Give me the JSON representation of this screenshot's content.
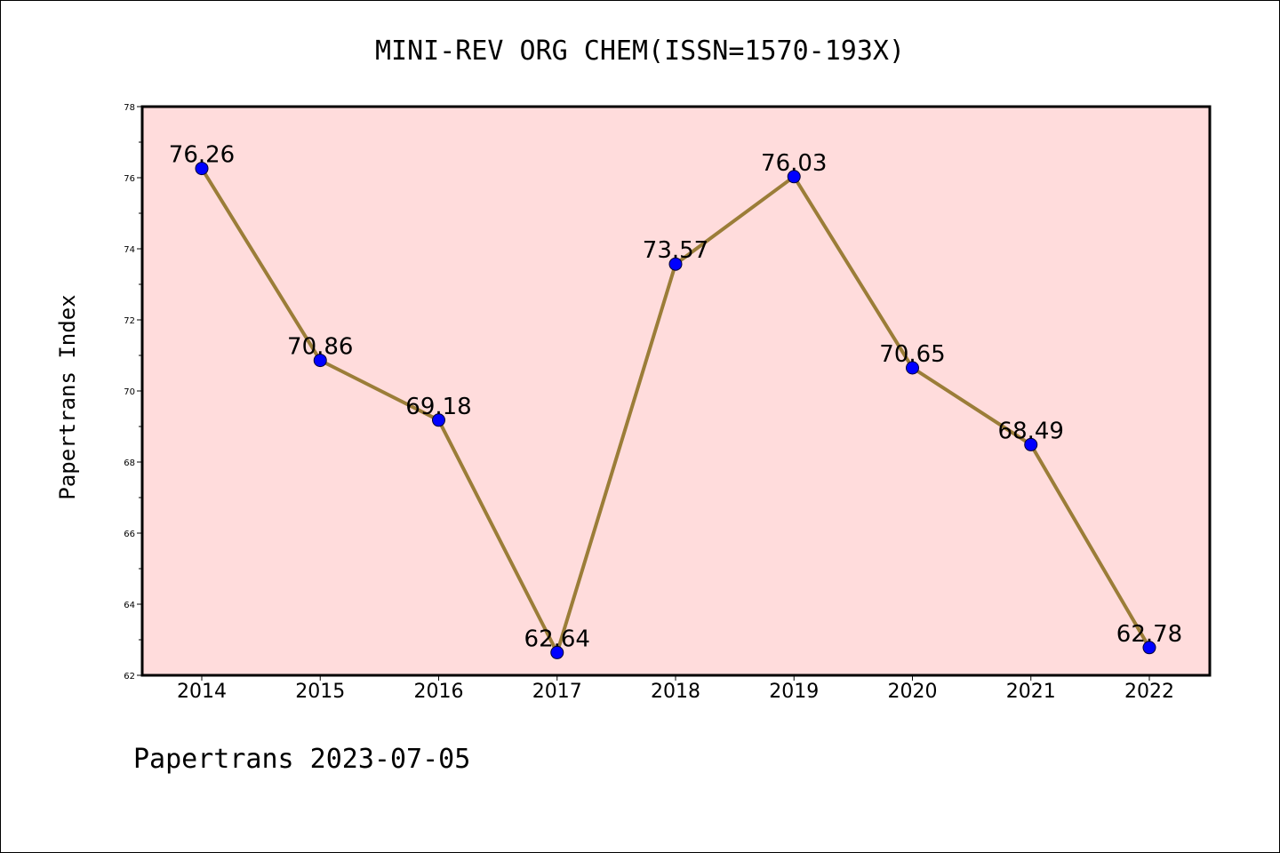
{
  "chart_data": {
    "type": "line",
    "title": "MINI-REV ORG CHEM(ISSN=1570-193X)",
    "ylabel": "Papertrans Index",
    "xlabel": "",
    "footer": "Papertrans 2023-07-05",
    "x": [
      "2014",
      "2015",
      "2016",
      "2017",
      "2018",
      "2019",
      "2020",
      "2021",
      "2022"
    ],
    "series": [
      {
        "values": [
          76.26,
          70.86,
          69.18,
          62.64,
          73.57,
          76.03,
          70.65,
          68.49,
          62.78
        ],
        "labels": [
          "76.26",
          "70.86",
          "69.18",
          "62.64",
          "73.57",
          "76.03",
          "70.65",
          "68.49",
          "62.78"
        ]
      }
    ],
    "ylim": [
      62,
      78
    ],
    "yticks": [
      "62",
      "64",
      "66",
      "68",
      "70",
      "72",
      "74",
      "76",
      "78"
    ],
    "grid": false,
    "colors": {
      "plot_background": "#ffdcdc",
      "line": "#9b7d38",
      "marker": "#0000ff"
    }
  }
}
